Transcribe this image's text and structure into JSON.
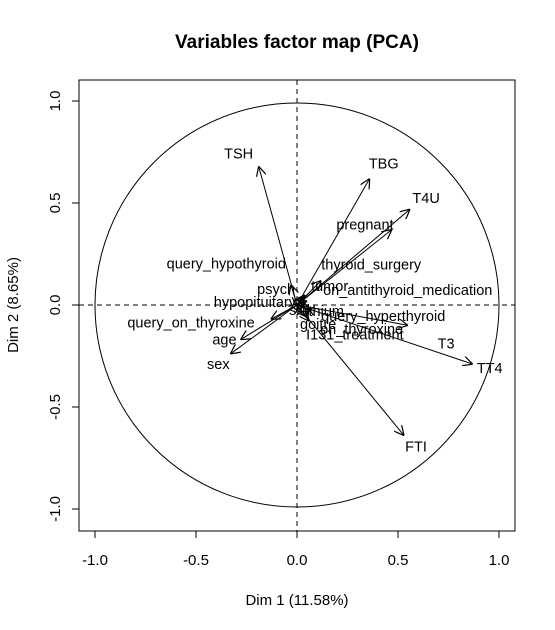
{
  "chart_data": {
    "type": "scatter",
    "title": "Variables factor map (PCA)",
    "xlabel": "Dim 1 (11.58%)",
    "ylabel": "Dim 2 (8.65%)",
    "xlim": [
      -1.0,
      1.0
    ],
    "ylim": [
      -1.0,
      1.0
    ],
    "x_ticks": [
      "-1.0",
      "-0.5",
      "0.0",
      "0.5",
      "1.0"
    ],
    "y_ticks": [
      "-1.0",
      "-0.5",
      "0.0",
      "0.5",
      "1.0"
    ],
    "grid": false,
    "unit_circle": true,
    "arrows": [
      {
        "name": "TSH",
        "x": -0.19,
        "y": 0.68
      },
      {
        "name": "TBG",
        "x": 0.36,
        "y": 0.62
      },
      {
        "name": "T4U",
        "x": 0.56,
        "y": 0.47
      },
      {
        "name": "pregnant",
        "x": 0.47,
        "y": 0.37
      },
      {
        "name": "thyroid_surgery",
        "x": 0.12,
        "y": 0.12
      },
      {
        "name": "query_hypothyroid",
        "x": -0.03,
        "y": 0.1
      },
      {
        "name": "tumor",
        "x": 0.04,
        "y": 0.05
      },
      {
        "name": "psych",
        "x": 0.03,
        "y": 0.04
      },
      {
        "name": "on_antithyroid_medication",
        "x": 0.05,
        "y": 0.02
      },
      {
        "name": "hypopituitary",
        "x": 0.01,
        "y": 0.01
      },
      {
        "name": "lithium",
        "x": 0.04,
        "y": -0.01
      },
      {
        "name": "query_hyperthyroid",
        "x": 0.07,
        "y": -0.03
      },
      {
        "name": "sick",
        "x": 0.0,
        "y": -0.01
      },
      {
        "name": "goitre",
        "x": 0.02,
        "y": -0.04
      },
      {
        "name": "on_thyroxine",
        "x": 0.05,
        "y": -0.06
      },
      {
        "name": "T3",
        "x": 0.55,
        "y": -0.1
      },
      {
        "name": "I131_treatment",
        "x": 0.06,
        "y": -0.08
      },
      {
        "name": "query_on_thyroxine",
        "x": -0.13,
        "y": -0.07
      },
      {
        "name": "age",
        "x": -0.28,
        "y": -0.17
      },
      {
        "name": "sex",
        "x": -0.33,
        "y": -0.24
      },
      {
        "name": "TT4",
        "x": 0.87,
        "y": -0.29
      },
      {
        "name": "FTI",
        "x": 0.53,
        "y": -0.64
      }
    ]
  }
}
